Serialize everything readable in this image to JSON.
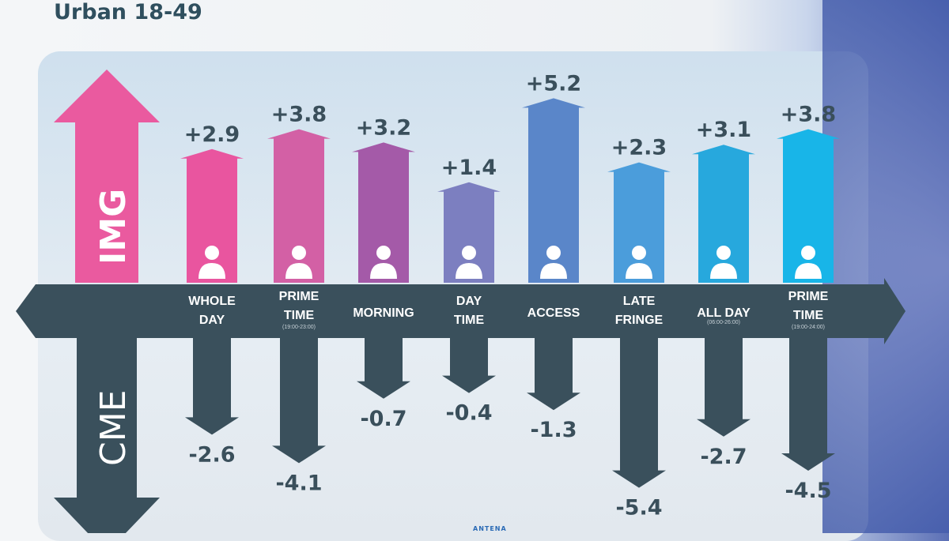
{
  "title": "Urban 18-49",
  "logo": "ANTENA",
  "chart_data": {
    "type": "bar",
    "up_axis_label": "IMG",
    "down_axis_label": "CME",
    "categories": [
      {
        "label": [
          "WHOLE",
          "DAY"
        ],
        "sub": ""
      },
      {
        "label": [
          "PRIME",
          "TIME"
        ],
        "sub": "(19:00-23:00)"
      },
      {
        "label": [
          "MORNING"
        ],
        "sub": ""
      },
      {
        "label": [
          "DAY",
          "TIME"
        ],
        "sub": ""
      },
      {
        "label": [
          "ACCESS"
        ],
        "sub": ""
      },
      {
        "label": [
          "LATE",
          "FRINGE"
        ],
        "sub": ""
      },
      {
        "label": [
          "ALL DAY"
        ],
        "sub": "(06:00-26:00)"
      },
      {
        "label": [
          "PRIME",
          "TIME"
        ],
        "sub": "(19:00-24:00)"
      }
    ],
    "series": [
      {
        "name": "IMG",
        "values": [
          2.9,
          3.8,
          3.2,
          1.4,
          5.2,
          2.3,
          3.1,
          3.8
        ],
        "labels": [
          "+2.9",
          "+3.8",
          "+3.2",
          "+1.4",
          "+5.2",
          "+2.3",
          "+3.1",
          "+3.8"
        ]
      },
      {
        "name": "CME",
        "values": [
          -2.6,
          -4.1,
          -0.7,
          -0.4,
          -1.3,
          -5.4,
          -2.7,
          -4.5
        ],
        "labels": [
          "-2.6",
          "-4.1",
          "-0.7",
          "-0.4",
          "-1.3",
          "-5.4",
          "-2.7",
          "-4.5"
        ]
      }
    ],
    "colors": {
      "up": [
        "#e9559f",
        "#d360a5",
        "#a45aa8",
        "#7c7fc0",
        "#5a86c9",
        "#4b9ddb",
        "#27a8dd",
        "#18b5e8"
      ],
      "down": "#3a505c",
      "img_arrow": "#ea5a9f"
    }
  }
}
